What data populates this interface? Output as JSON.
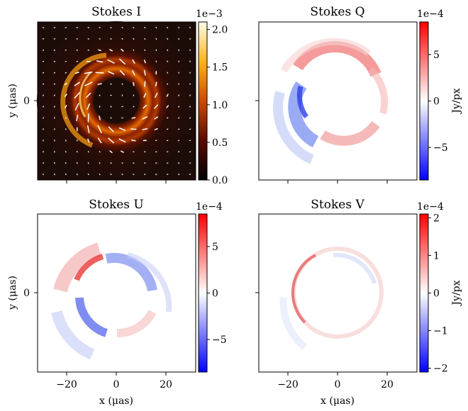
{
  "chart_data": [
    {
      "type": "heatmap",
      "title": "Stokes I",
      "colormap": "afmhot",
      "vlim": [
        0,
        0.0021
      ],
      "colorbar_ticks": [
        "0.0",
        "0.5",
        "1.0",
        "1.5",
        "2.0"
      ],
      "colorbar_tick_values": [
        0.0,
        0.5,
        1.0,
        1.5,
        2.0
      ],
      "colorbar_scale_label": "1e−3",
      "colorbar_label": "",
      "ylabel": "y (μas)",
      "xlabel": "",
      "yticks": [
        "0"
      ],
      "xticks": [],
      "xlim": [
        -32,
        32
      ],
      "ylim": [
        -32,
        32
      ],
      "polarization_ticks": true
    },
    {
      "type": "heatmap",
      "title": "Stokes Q",
      "colormap": "bwr",
      "vlim": [
        -0.00085,
        0.00085
      ],
      "colorbar_ticks": [
        "5",
        "0",
        "−5"
      ],
      "colorbar_tick_values": [
        5,
        0,
        -5
      ],
      "colorbar_scale_label": "1e−4",
      "colorbar_label": "Jy/px",
      "ylabel": "",
      "xlabel": "",
      "yticks": [],
      "xticks": [],
      "xlim": [
        -32,
        32
      ],
      "ylim": [
        -32,
        32
      ]
    },
    {
      "type": "heatmap",
      "title": "Stokes U",
      "colormap": "bwr",
      "vlim": [
        -0.00085,
        0.00085
      ],
      "colorbar_ticks": [
        "5",
        "0",
        "−5"
      ],
      "colorbar_tick_values": [
        5,
        0,
        -5
      ],
      "colorbar_scale_label": "1e−4",
      "colorbar_label": "",
      "ylabel": "y (μas)",
      "xlabel": "x (μas)",
      "yticks": [
        "0"
      ],
      "xticks": [
        "−20",
        "0",
        "20"
      ],
      "xtick_values": [
        -20,
        0,
        20
      ],
      "xlim": [
        -32,
        32
      ],
      "ylim": [
        -32,
        32
      ]
    },
    {
      "type": "heatmap",
      "title": "Stokes V",
      "colormap": "bwr",
      "vlim": [
        -0.00021,
        0.00021
      ],
      "colorbar_ticks": [
        "2",
        "1",
        "0",
        "−1",
        "−2"
      ],
      "colorbar_tick_values": [
        2,
        1,
        0,
        -1,
        -2
      ],
      "colorbar_scale_label": "1e−4",
      "colorbar_label": "Jy/px",
      "ylabel": "",
      "xlabel": "x (μas)",
      "yticks": [],
      "xticks": [
        "−20",
        "0",
        "20"
      ],
      "xtick_values": [
        -20,
        0,
        20
      ],
      "xlim": [
        -32,
        32
      ],
      "ylim": [
        -32,
        32
      ]
    }
  ]
}
